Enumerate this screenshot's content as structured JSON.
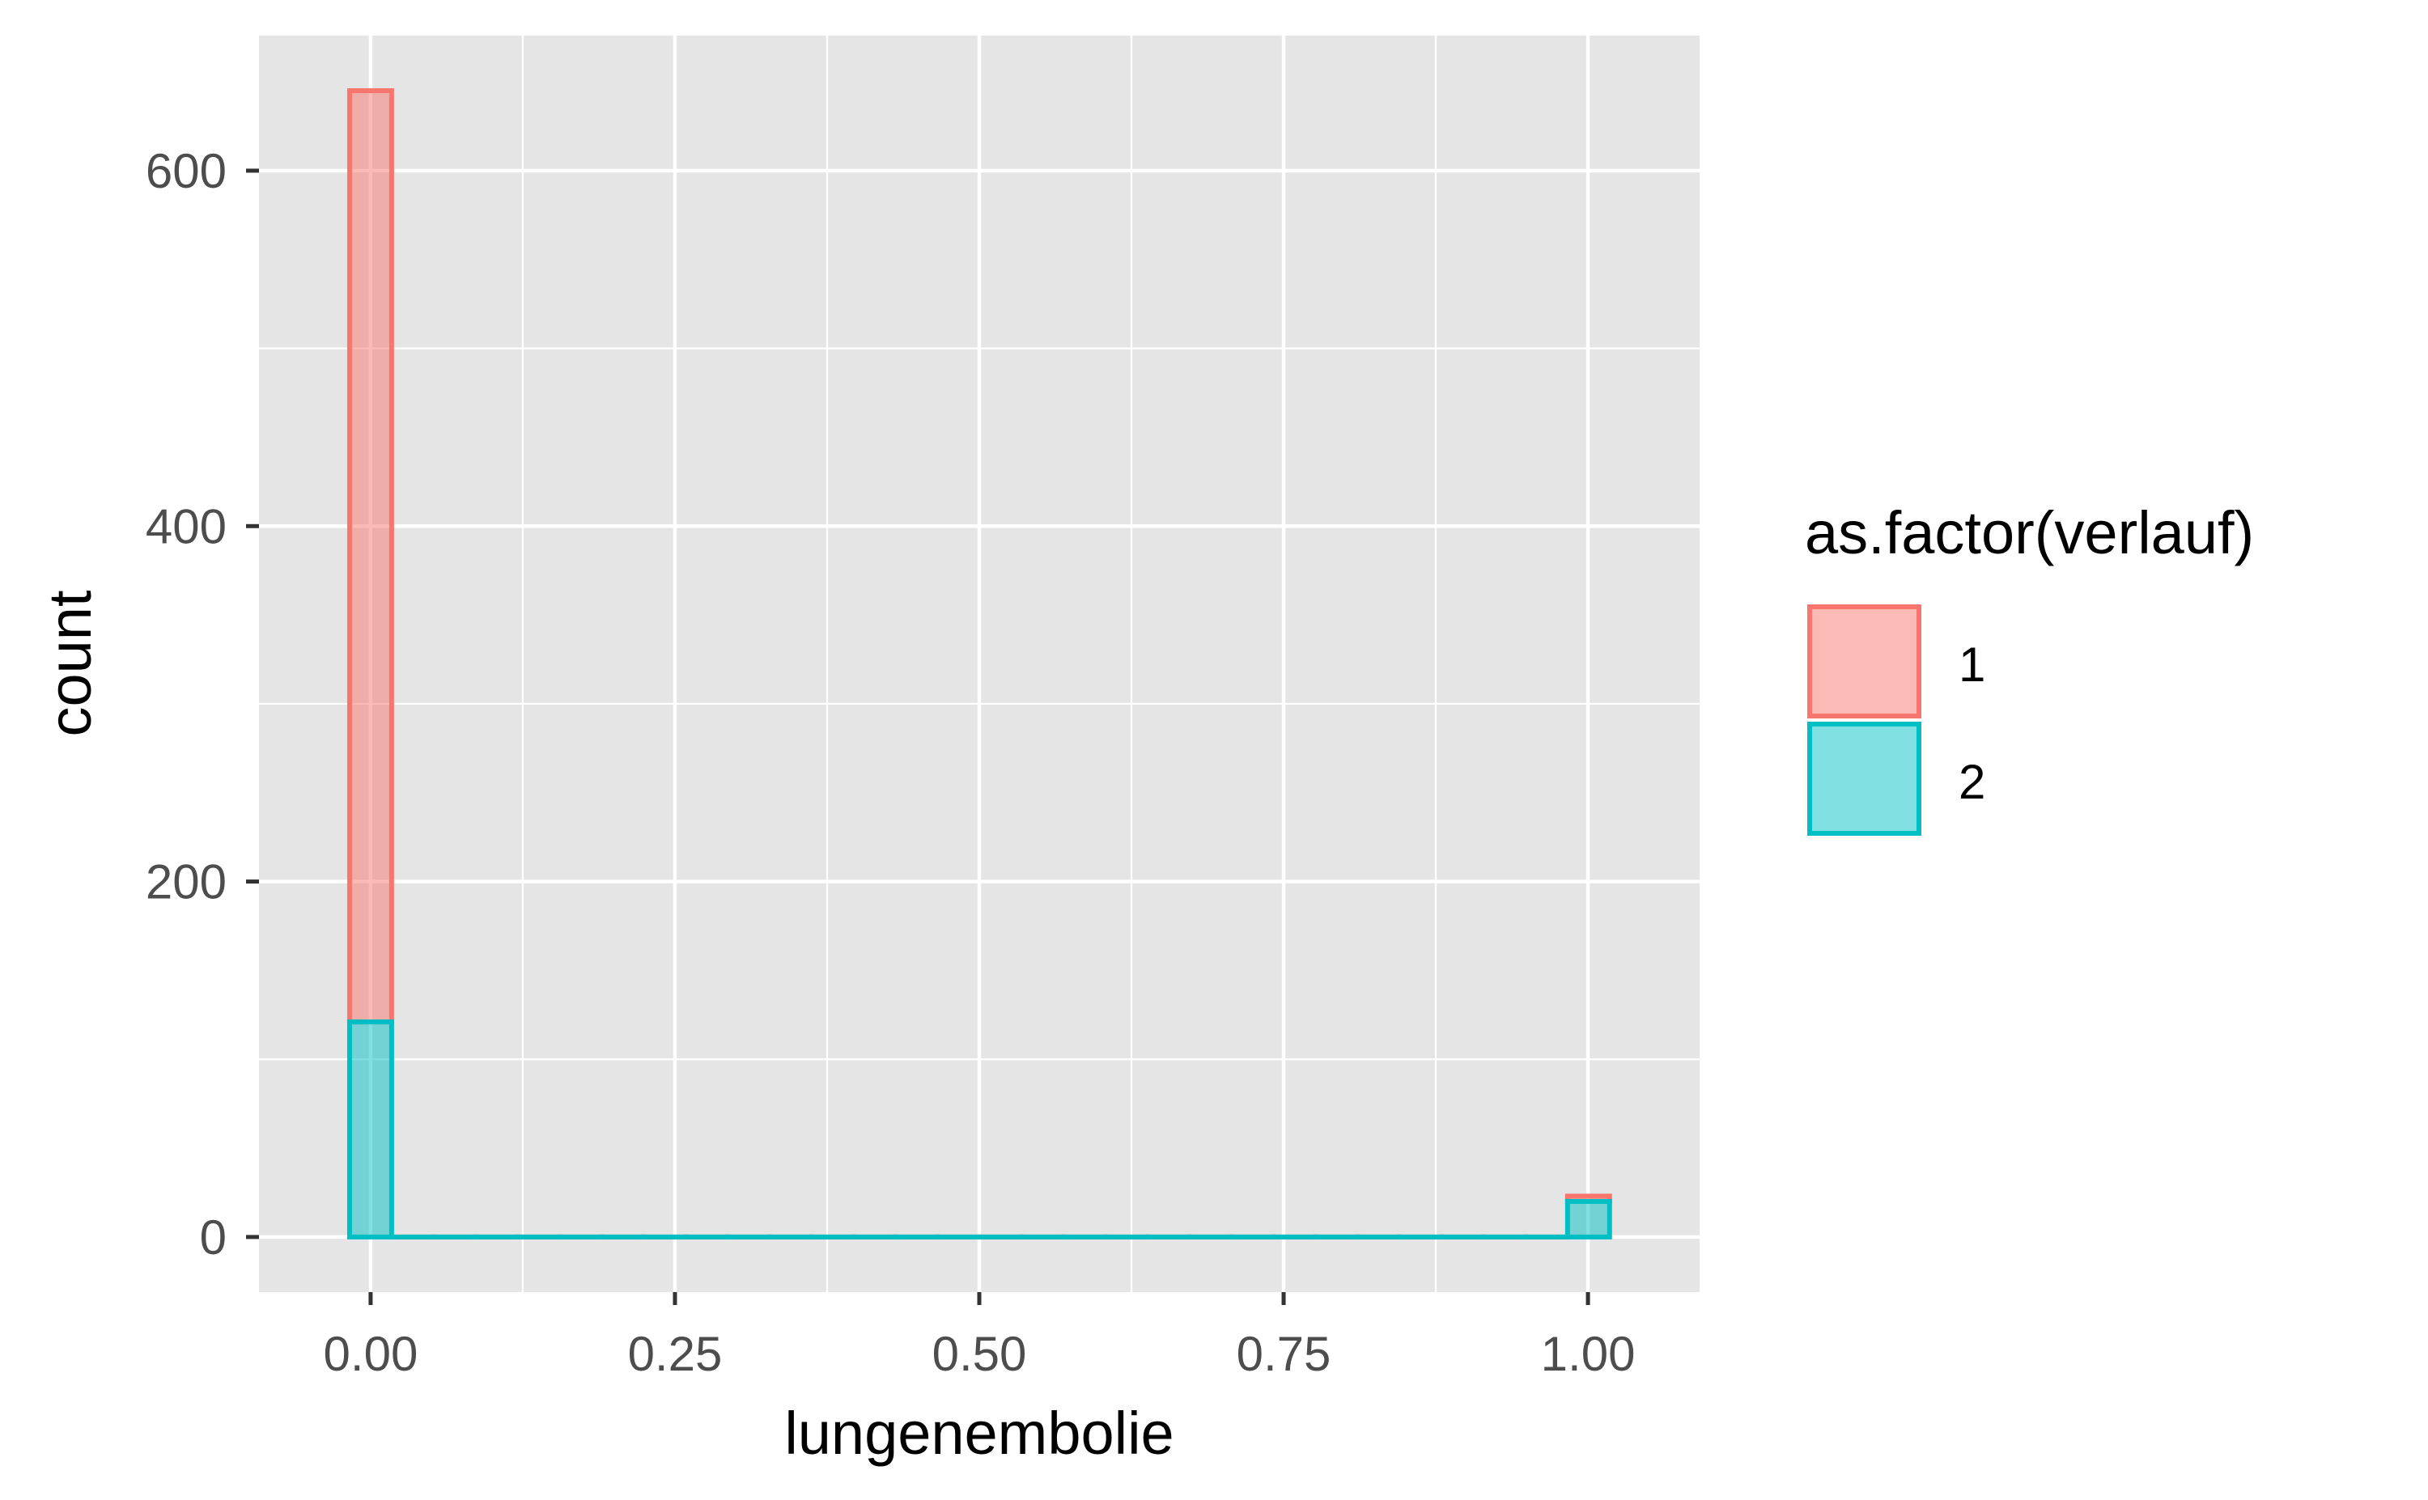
{
  "chart_data": {
    "type": "bar",
    "chart_subtype": "stacked-histogram",
    "xlabel": "lungenembolie",
    "ylabel": "count",
    "xlim": [
      -0.0917,
      1.0917
    ],
    "ylim": [
      -31,
      676
    ],
    "x_ticks": [
      {
        "value": 0,
        "label": "0.00"
      },
      {
        "value": 0.25,
        "label": "0.25"
      },
      {
        "value": 0.5,
        "label": "0.50"
      },
      {
        "value": 0.75,
        "label": "0.75"
      },
      {
        "value": 1,
        "label": "1.00"
      }
    ],
    "y_ticks": [
      {
        "value": 0,
        "label": "0"
      },
      {
        "value": 200,
        "label": "200"
      },
      {
        "value": 400,
        "label": "400"
      },
      {
        "value": 600,
        "label": "600"
      }
    ],
    "bin_width": 0.0345,
    "bin_start": -0.01725,
    "bin_count": 30,
    "series": [
      {
        "name": "1",
        "color": "#F8766D",
        "bins_nonzero": {
          "0": 524,
          "29": 3
        }
      },
      {
        "name": "2",
        "color": "#00BFC4",
        "bins_nonzero": {
          "0": 121,
          "29": 20
        }
      }
    ],
    "stacking": "group 2 at bottom, group 1 stacked on top",
    "grid": true,
    "panel_background": "#e5e5e5",
    "legend": {
      "title": "as.factor(verlauf)",
      "position": "right",
      "items": [
        "1",
        "2"
      ]
    }
  }
}
